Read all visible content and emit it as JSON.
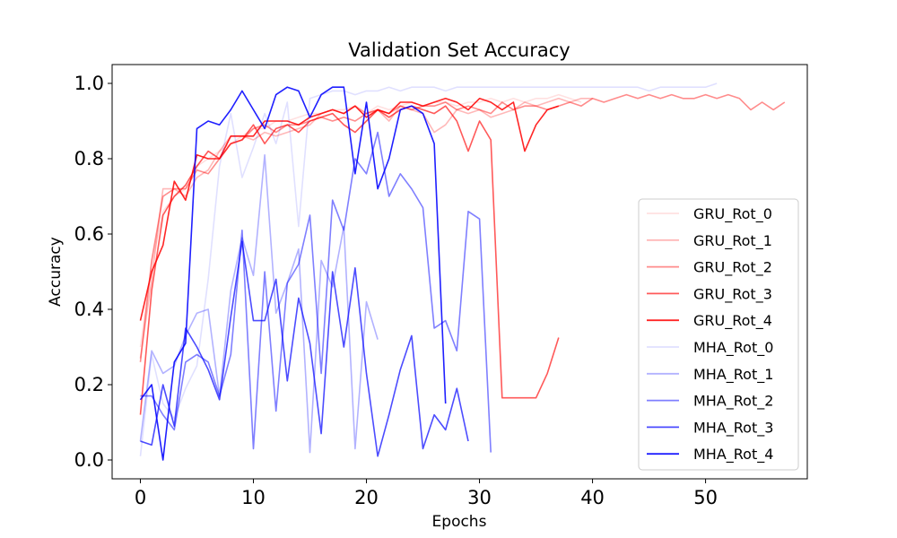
{
  "chart_data": {
    "type": "line",
    "title": "Validation Set Accuracy",
    "xlabel": "Epochs",
    "ylabel": "Accuracy",
    "xlim": [
      -2.5,
      59
    ],
    "ylim": [
      -0.05,
      1.05
    ],
    "xticks": [
      0,
      10,
      20,
      30,
      40,
      50
    ],
    "yticks": [
      0.0,
      0.2,
      0.4,
      0.6,
      0.8,
      1.0
    ],
    "grid": false,
    "legend_position": "lower-right",
    "series": [
      {
        "name": "GRU_Rot_0",
        "color": "#ff0000",
        "opacity": 0.12,
        "values": [
          0.3,
          0.52,
          0.66,
          0.7,
          0.72,
          0.78,
          0.8,
          0.82,
          0.84,
          0.86,
          0.88,
          0.88,
          0.9,
          0.9,
          0.91,
          0.92,
          0.92,
          0.93,
          0.93,
          0.94,
          0.92,
          0.94,
          0.93,
          0.94,
          0.95,
          0.94,
          0.95,
          0.95,
          0.94,
          0.95,
          0.95,
          0.96,
          0.95,
          0.96,
          0.95,
          0.96,
          0.96,
          0.97,
          0.96,
          0.95
        ]
      },
      {
        "name": "GRU_Rot_1",
        "color": "#ff0000",
        "opacity": 0.28,
        "values": [
          0.27,
          0.48,
          0.72,
          0.72,
          0.7,
          0.75,
          0.77,
          0.82,
          0.86,
          0.86,
          0.85,
          0.87,
          0.86,
          0.87,
          0.88,
          0.89,
          0.92,
          0.93,
          0.92,
          0.94,
          0.92,
          0.93,
          0.9,
          0.94,
          0.93,
          0.92,
          0.87,
          0.89,
          0.93,
          0.92,
          0.93,
          0.91,
          0.92,
          0.93,
          0.95,
          0.94,
          0.95,
          0.96,
          0.95,
          0.96,
          0.96
        ]
      },
      {
        "name": "GRU_Rot_2",
        "color": "#ff0000",
        "opacity": 0.45,
        "values": [
          0.26,
          0.53,
          0.7,
          0.72,
          0.72,
          0.77,
          0.76,
          0.8,
          0.84,
          0.85,
          0.88,
          0.89,
          0.87,
          0.89,
          0.89,
          0.9,
          0.91,
          0.9,
          0.91,
          0.9,
          0.92,
          0.93,
          0.92,
          0.94,
          0.93,
          0.94,
          0.94,
          0.95,
          0.93,
          0.94,
          0.93,
          0.92,
          0.95,
          0.93,
          0.94,
          0.94,
          0.93,
          0.94,
          0.95,
          0.94,
          0.96,
          0.95,
          0.96,
          0.97,
          0.96,
          0.97,
          0.96,
          0.97,
          0.96,
          0.96,
          0.97,
          0.96,
          0.97,
          0.96,
          0.93,
          0.95,
          0.93,
          0.95
        ]
      },
      {
        "name": "GRU_Rot_3",
        "color": "#ff0000",
        "opacity": 0.65,
        "values": [
          0.12,
          0.45,
          0.65,
          0.7,
          0.73,
          0.78,
          0.82,
          0.8,
          0.84,
          0.85,
          0.89,
          0.84,
          0.88,
          0.89,
          0.87,
          0.9,
          0.91,
          0.92,
          0.89,
          0.87,
          0.9,
          0.93,
          0.91,
          0.93,
          0.94,
          0.93,
          0.92,
          0.94,
          0.9,
          0.82,
          0.9,
          0.85,
          0.165,
          0.165,
          0.165,
          0.165,
          0.23,
          0.325
        ]
      },
      {
        "name": "GRU_Rot_4",
        "color": "#ff0000",
        "opacity": 0.85,
        "values": [
          0.37,
          0.5,
          0.57,
          0.74,
          0.69,
          0.81,
          0.8,
          0.8,
          0.86,
          0.86,
          0.86,
          0.9,
          0.9,
          0.9,
          0.89,
          0.91,
          0.92,
          0.93,
          0.92,
          0.94,
          0.91,
          0.93,
          0.92,
          0.95,
          0.95,
          0.94,
          0.95,
          0.96,
          0.95,
          0.93,
          0.96,
          0.95,
          0.93,
          0.95,
          0.82,
          0.89,
          0.93,
          0.94
        ]
      },
      {
        "name": "MHA_Rot_0",
        "color": "#0000ff",
        "opacity": 0.12,
        "values": [
          0.01,
          0.28,
          0.15,
          0.11,
          0.19,
          0.25,
          0.48,
          0.78,
          0.92,
          0.75,
          0.83,
          0.92,
          0.84,
          0.95,
          0.62,
          0.96,
          0.97,
          0.98,
          0.98,
          0.97,
          0.98,
          0.98,
          0.99,
          0.98,
          0.99,
          0.99,
          0.99,
          0.98,
          0.99,
          0.99,
          0.99,
          0.99,
          0.99,
          0.99,
          0.99,
          0.99,
          0.99,
          0.99,
          0.99,
          0.99,
          0.99,
          0.99,
          0.99,
          0.99,
          0.99,
          0.98,
          0.99,
          0.99,
          0.99,
          0.99,
          0.99,
          1.0
        ]
      },
      {
        "name": "MHA_Rot_1",
        "color": "#0000ff",
        "opacity": 0.3,
        "values": [
          0.05,
          0.29,
          0.23,
          0.25,
          0.33,
          0.39,
          0.4,
          0.17,
          0.45,
          0.59,
          0.49,
          0.81,
          0.39,
          0.47,
          0.56,
          0.02,
          0.53,
          0.46,
          0.62,
          0.03,
          0.42,
          0.32
        ]
      },
      {
        "name": "MHA_Rot_2",
        "color": "#0000ff",
        "opacity": 0.5,
        "values": [
          0.17,
          0.17,
          0.12,
          0.08,
          0.26,
          0.28,
          0.26,
          0.17,
          0.28,
          0.61,
          0.03,
          0.5,
          0.13,
          0.47,
          0.52,
          0.65,
          0.23,
          0.69,
          0.61,
          0.8,
          0.76,
          0.87,
          0.7,
          0.76,
          0.72,
          0.67,
          0.35,
          0.37,
          0.29,
          0.66,
          0.64,
          0.02
        ]
      },
      {
        "name": "MHA_Rot_3",
        "color": "#0000ff",
        "opacity": 0.7,
        "values": [
          0.05,
          0.04,
          0.2,
          0.09,
          0.35,
          0.3,
          0.24,
          0.16,
          0.38,
          0.58,
          0.37,
          0.37,
          0.48,
          0.21,
          0.43,
          0.31,
          0.07,
          0.5,
          0.3,
          0.51,
          0.23,
          0.01,
          0.12,
          0.24,
          0.33,
          0.03,
          0.12,
          0.08,
          0.19,
          0.05
        ]
      },
      {
        "name": "MHA_Rot_4",
        "color": "#0000ff",
        "opacity": 0.88,
        "values": [
          0.16,
          0.2,
          0.0,
          0.26,
          0.31,
          0.88,
          0.9,
          0.89,
          0.93,
          0.98,
          0.93,
          0.88,
          0.97,
          0.99,
          0.98,
          0.91,
          0.97,
          0.99,
          0.99,
          0.76,
          0.95,
          0.72,
          0.8,
          0.93,
          0.94,
          0.92,
          0.84,
          0.15
        ]
      }
    ]
  }
}
